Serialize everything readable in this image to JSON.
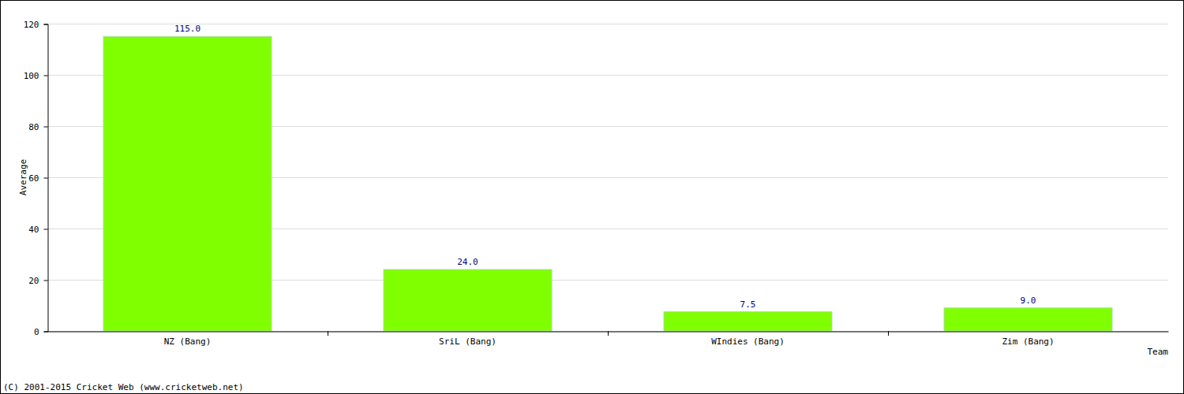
{
  "chart_data": {
    "type": "bar",
    "categories": [
      "NZ (Bang)",
      "SriL (Bang)",
      "WIndies (Bang)",
      "Zim (Bang)"
    ],
    "values": [
      115,
      24,
      7.5,
      9
    ],
    "value_labels": [
      "115.0",
      "24.0",
      "7.5",
      "9.0"
    ],
    "color": "#80ff00",
    "x_label": "Team",
    "y_label": "Average",
    "annotations": [
      "(C) 2001-2015 Cricket Web (www.cricketweb.net)"
    ],
    "ylim": [
      0,
      120
    ],
    "yticks": [
      0,
      20,
      40,
      60,
      80,
      100,
      120
    ],
    "grid": true,
    "data_labels": true
  }
}
